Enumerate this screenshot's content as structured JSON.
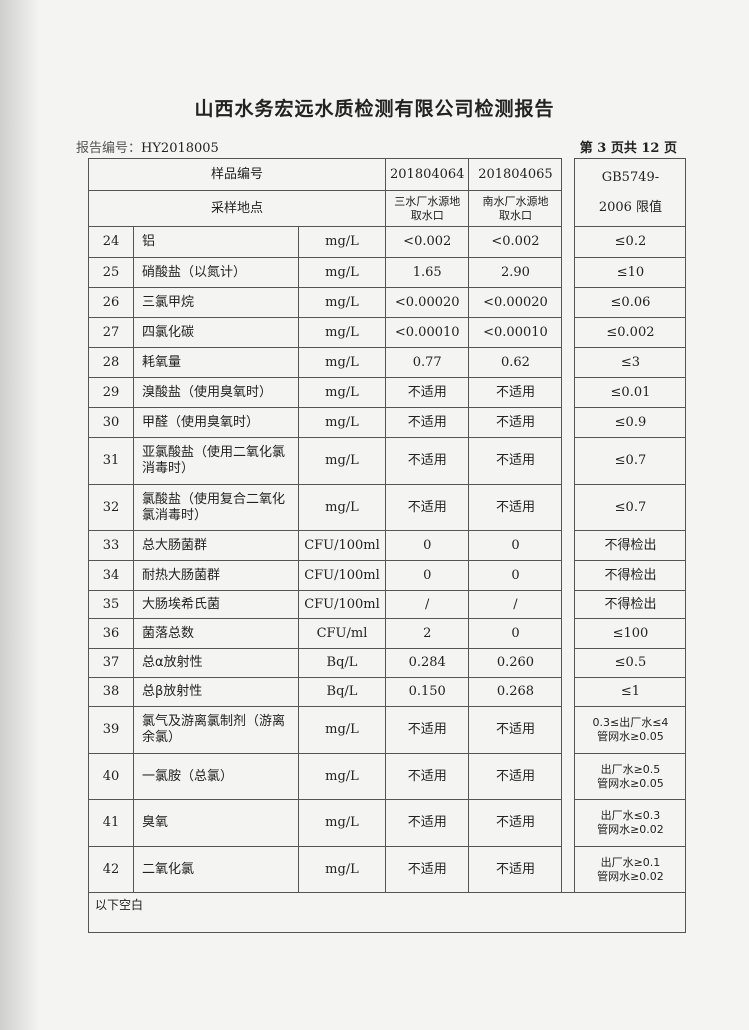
{
  "title": "山西水务宏远水质检测有限公司检测报告",
  "report_no_label": "报告编号：",
  "report_no": "HY2018005",
  "page_info": "第 3 页共 12 页",
  "header": {
    "sample_no_label": "样品编号",
    "sample_site_label": "采样地点",
    "sample1": "201804064",
    "sample2": "201804065",
    "site1": "三水厂水源地取水口",
    "site2": "南水厂水源地取水口",
    "limit_label": "GB5749-2006 限值"
  },
  "rows": [
    {
      "n": "24",
      "name": "铝",
      "unit": "mg/L",
      "v1": "<0.002",
      "v2": "<0.002",
      "lim": "≤0.2"
    },
    {
      "n": "25",
      "name": "硝酸盐（以氮计）",
      "unit": "mg/L",
      "v1": "1.65",
      "v2": "2.90",
      "lim": "≤10"
    },
    {
      "n": "26",
      "name": "三氯甲烷",
      "unit": "mg/L",
      "v1": "<0.00020",
      "v2": "<0.00020",
      "lim": "≤0.06"
    },
    {
      "n": "27",
      "name": "四氯化碳",
      "unit": "mg/L",
      "v1": "<0.00010",
      "v2": "<0.00010",
      "lim": "≤0.002"
    },
    {
      "n": "28",
      "name": "耗氧量",
      "unit": "mg/L",
      "v1": "0.77",
      "v2": "0.62",
      "lim": "≤3"
    },
    {
      "n": "29",
      "name": "溴酸盐（使用臭氧时）",
      "unit": "mg/L",
      "v1": "不适用",
      "v2": "不适用",
      "lim": "≤0.01"
    },
    {
      "n": "30",
      "name": "甲醛（使用臭氧时）",
      "unit": "mg/L",
      "v1": "不适用",
      "v2": "不适用",
      "lim": "≤0.9"
    },
    {
      "n": "31",
      "name": "亚氯酸盐（使用二氧化氯消毒时）",
      "unit": "mg/L",
      "v1": "不适用",
      "v2": "不适用",
      "lim": "≤0.7"
    },
    {
      "n": "32",
      "name": "氯酸盐（使用复合二氧化氯消毒时）",
      "unit": "mg/L",
      "v1": "不适用",
      "v2": "不适用",
      "lim": "≤0.7"
    },
    {
      "n": "33",
      "name": "总大肠菌群",
      "unit": "CFU/100ml",
      "v1": "0",
      "v2": "0",
      "lim": "不得检出"
    },
    {
      "n": "34",
      "name": "耐热大肠菌群",
      "unit": "CFU/100ml",
      "v1": "0",
      "v2": "0",
      "lim": "不得检出"
    },
    {
      "n": "35",
      "name": "大肠埃希氏菌",
      "unit": "CFU/100ml",
      "v1": "/",
      "v2": "/",
      "lim": "不得检出"
    },
    {
      "n": "36",
      "name": "菌落总数",
      "unit": "CFU/ml",
      "v1": "2",
      "v2": "0",
      "lim": "≤100"
    },
    {
      "n": "37",
      "name": "总α放射性",
      "unit": "Bq/L",
      "v1": "0.284",
      "v2": "0.260",
      "lim": "≤0.5"
    },
    {
      "n": "38",
      "name": "总β放射性",
      "unit": "Bq/L",
      "v1": "0.150",
      "v2": "0.268",
      "lim": "≤1"
    },
    {
      "n": "39",
      "name": "氯气及游离氯制剂（游离余氯）",
      "unit": "mg/L",
      "v1": "不适用",
      "v2": "不适用",
      "lim": "0.3≤出厂水≤4 管网水≥0.05"
    },
    {
      "n": "40",
      "name": "一氯胺（总氯）",
      "unit": "mg/L",
      "v1": "不适用",
      "v2": "不适用",
      "lim": "出厂水≥0.5 管网水≥0.05"
    },
    {
      "n": "41",
      "name": "臭氧",
      "unit": "mg/L",
      "v1": "不适用",
      "v2": "不适用",
      "lim": "出厂水≤0.3 管网水≥0.02"
    },
    {
      "n": "42",
      "name": "二氧化氯",
      "unit": "mg/L",
      "v1": "不适用",
      "v2": "不适用",
      "lim": "出厂水≥0.1 管网水≥0.02"
    }
  ],
  "footer": "以下空白"
}
